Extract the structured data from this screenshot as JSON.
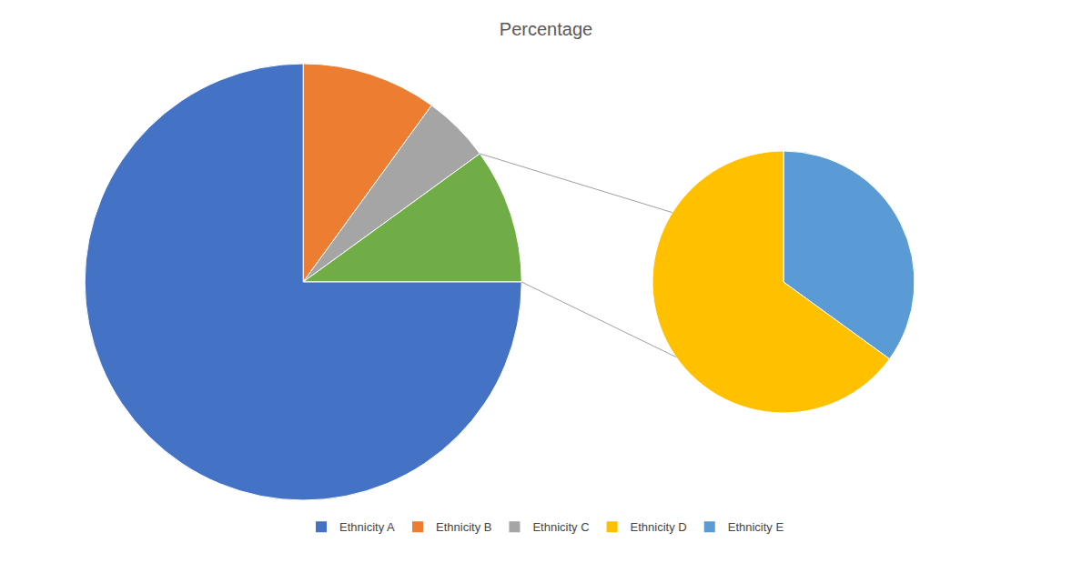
{
  "chart_data": [
    {
      "type": "pie",
      "title": "Percentage",
      "categories": [
        "Ethnicity B",
        "Ethnicity C",
        null,
        "Ethnicity A"
      ],
      "values": [
        10,
        5,
        10,
        75
      ],
      "colors": [
        "#ed7d31",
        "#a5a5a5",
        "#70ad47",
        "#4472c4"
      ],
      "legend": "bottom"
    },
    {
      "type": "pie",
      "categories": [
        "Ethnicity E",
        "Ethnicity D"
      ],
      "values": [
        35,
        65
      ],
      "colors": [
        "#5b9bd5",
        "#ffc000"
      ]
    }
  ]
}
